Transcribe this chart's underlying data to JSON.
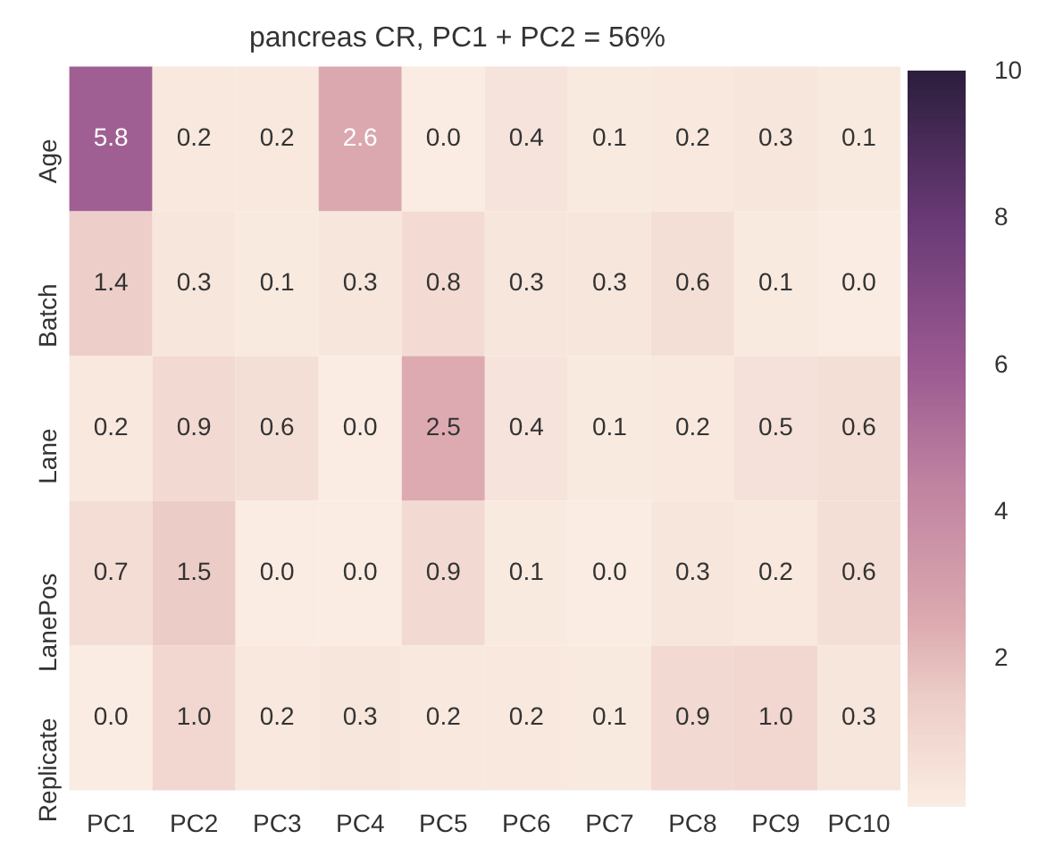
{
  "chart_data": {
    "type": "heatmap",
    "title": "pancreas CR, PC1 + PC2 = 56%",
    "categories": [
      "PC1",
      "PC2",
      "PC3",
      "PC4",
      "PC5",
      "PC6",
      "PC7",
      "PC8",
      "PC9",
      "PC10"
    ],
    "y_categories": [
      "Age",
      "Batch",
      "Lane",
      "LanePos",
      "Replicate"
    ],
    "cells": [
      [
        5.8,
        0.2,
        0.2,
        2.6,
        0.0,
        0.4,
        0.1,
        0.2,
        0.3,
        0.1
      ],
      [
        1.4,
        0.3,
        0.1,
        0.3,
        0.8,
        0.3,
        0.3,
        0.6,
        0.1,
        0.0
      ],
      [
        0.2,
        0.9,
        0.6,
        0.0,
        2.5,
        0.4,
        0.1,
        0.2,
        0.5,
        0.6
      ],
      [
        0.7,
        1.5,
        0.0,
        0.0,
        0.9,
        0.1,
        0.0,
        0.3,
        0.2,
        0.6
      ],
      [
        0.0,
        1.0,
        0.2,
        0.3,
        0.2,
        0.2,
        0.1,
        0.9,
        1.0,
        0.3
      ]
    ],
    "cell_labels": [
      [
        "5.8",
        "0.2",
        "0.2",
        "2.6",
        "0.0",
        "0.4",
        "0.1",
        "0.2",
        "0.3",
        "0.1"
      ],
      [
        "1.4",
        "0.3",
        "0.1",
        "0.3",
        "0.8",
        "0.3",
        "0.3",
        "0.6",
        "0.1",
        "0.0"
      ],
      [
        "0.2",
        "0.9",
        "0.6",
        "0.0",
        "2.5",
        "0.4",
        "0.1",
        "0.2",
        "0.5",
        "0.6"
      ],
      [
        "0.7",
        "1.5",
        "0.0",
        "0.0",
        "0.9",
        "0.1",
        "0.0",
        "0.3",
        "0.2",
        "0.6"
      ],
      [
        "0.0",
        "1.0",
        "0.2",
        "0.3",
        "0.2",
        "0.2",
        "0.1",
        "0.9",
        "1.0",
        "0.3"
      ]
    ],
    "clim": [
      0,
      10
    ],
    "cticks": [
      2,
      4,
      6,
      8,
      10
    ]
  }
}
